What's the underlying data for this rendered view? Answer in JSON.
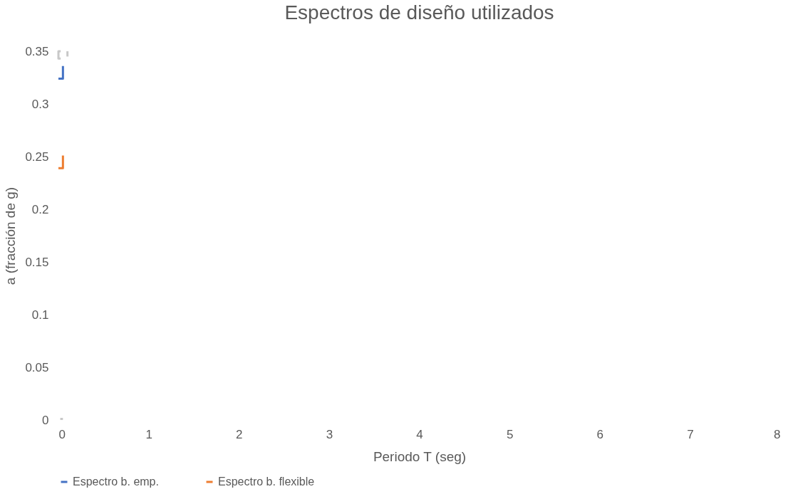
{
  "chart_data": {
    "type": "line",
    "title": "Espectros de diseño utilizados",
    "xlabel": "Periodo T (seg)",
    "ylabel": "a (fracción de g)",
    "xlim": [
      0,
      8
    ],
    "xticks": [
      0,
      1,
      2,
      3,
      4,
      5,
      6,
      7,
      8
    ],
    "ylim": [
      0,
      0.35
    ],
    "yticks": [
      0,
      0.05,
      0.1,
      0.15,
      0.2,
      0.25,
      0.3,
      0.35
    ],
    "grid": false,
    "legend": "bottom",
    "marker": "none",
    "line_style": "solid",
    "series": [
      {
        "name": "Espectro b. emp.",
        "color": "#4472c4",
        "x": [
          0,
          0.05,
          0.05
        ],
        "values": [
          0.324,
          0.324,
          0.336
        ]
      },
      {
        "name": "Espectro b. flexible",
        "color": "#ed7d31",
        "x": [
          0,
          0.05,
          0.05
        ],
        "values": [
          0.239,
          0.239,
          0.251
        ]
      },
      {
        "color": "#c8c8c8",
        "x": [
          0.025,
          0,
          0,
          0.025,
          null,
          0.1,
          0.1
        ],
        "values": [
          0.35,
          0.35,
          0.343,
          0.343,
          null,
          0.35,
          0.345
        ]
      },
      {
        "color": "#c8c8c8",
        "x": [
          0.02,
          0.05
        ],
        "values": [
          0.001,
          0.001
        ]
      }
    ]
  }
}
